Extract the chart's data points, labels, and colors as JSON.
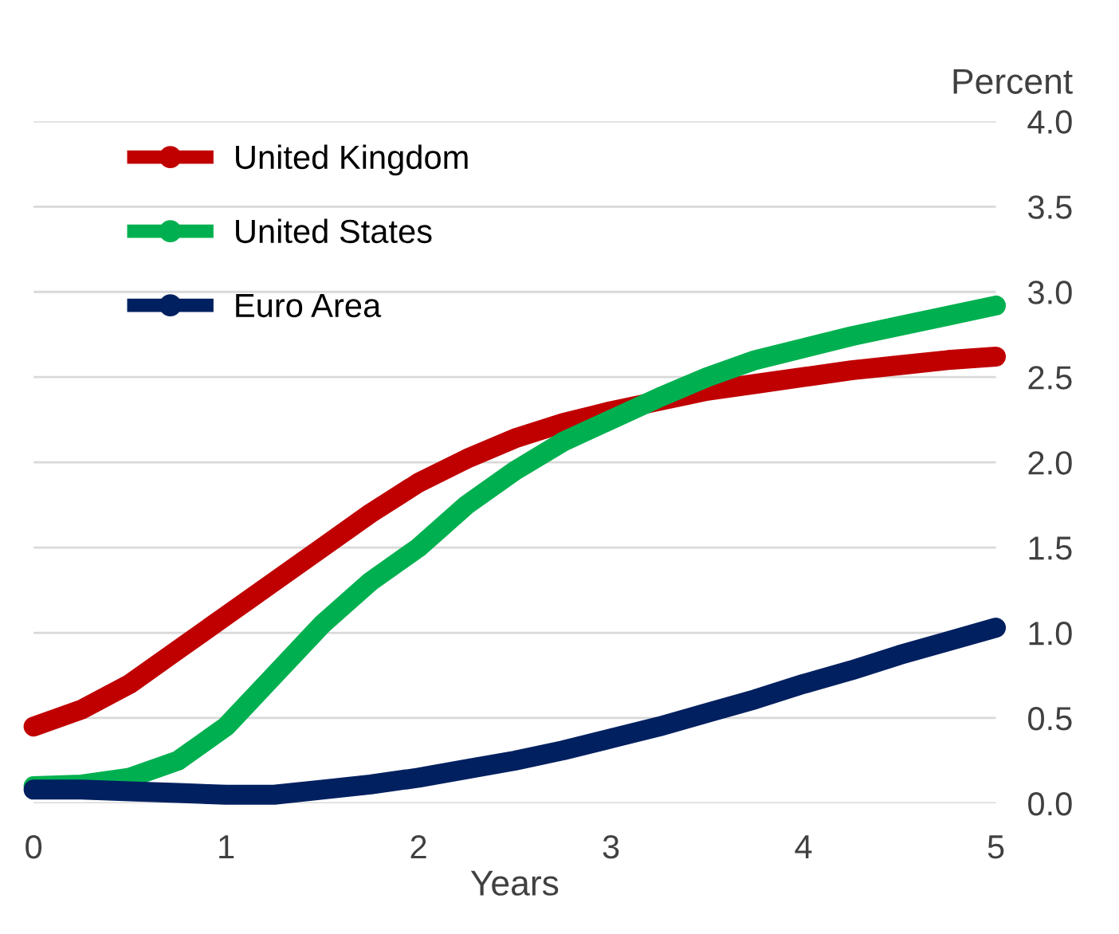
{
  "chart_data": {
    "type": "line",
    "ylabel": "Percent",
    "xlabel": "Years",
    "x": [
      0,
      0.25,
      0.5,
      0.75,
      1,
      1.25,
      1.5,
      1.75,
      2,
      2.25,
      2.5,
      2.75,
      3,
      3.25,
      3.5,
      3.75,
      4,
      4.25,
      4.5,
      4.75,
      5
    ],
    "series": [
      {
        "name": "United Kingdom",
        "color": "#c00000",
        "values": [
          0.45,
          0.55,
          0.7,
          0.9,
          1.1,
          1.3,
          1.5,
          1.7,
          1.88,
          2.02,
          2.14,
          2.23,
          2.3,
          2.36,
          2.42,
          2.46,
          2.5,
          2.54,
          2.57,
          2.6,
          2.62
        ]
      },
      {
        "name": "United States",
        "color": "#00b050",
        "values": [
          0.1,
          0.11,
          0.15,
          0.25,
          0.45,
          0.75,
          1.05,
          1.3,
          1.5,
          1.75,
          1.95,
          2.12,
          2.25,
          2.38,
          2.5,
          2.6,
          2.67,
          2.74,
          2.8,
          2.86,
          2.92
        ]
      },
      {
        "name": "Euro Area",
        "color": "#002060",
        "values": [
          0.08,
          0.08,
          0.07,
          0.06,
          0.05,
          0.05,
          0.08,
          0.11,
          0.15,
          0.2,
          0.25,
          0.31,
          0.38,
          0.45,
          0.53,
          0.61,
          0.7,
          0.78,
          0.87,
          0.95,
          1.03
        ]
      }
    ],
    "xlim": [
      0,
      5
    ],
    "xticks": [
      0,
      1,
      2,
      3,
      4,
      5
    ],
    "ylim": [
      0,
      4
    ],
    "yticks": [
      {
        "value": 0,
        "label": "0.0"
      },
      {
        "value": 0.5,
        "label": "0.5"
      },
      {
        "value": 1,
        "label": "1.0"
      },
      {
        "value": 1.5,
        "label": "1.5"
      },
      {
        "value": 2,
        "label": "2.0"
      },
      {
        "value": 2.5,
        "label": "2.5"
      },
      {
        "value": 3,
        "label": "3.0"
      },
      {
        "value": 3.5,
        "label": "3.5"
      },
      {
        "value": 4,
        "label": "4.0"
      }
    ],
    "grid": "y",
    "legend": "top left",
    "line_style": "solid"
  }
}
